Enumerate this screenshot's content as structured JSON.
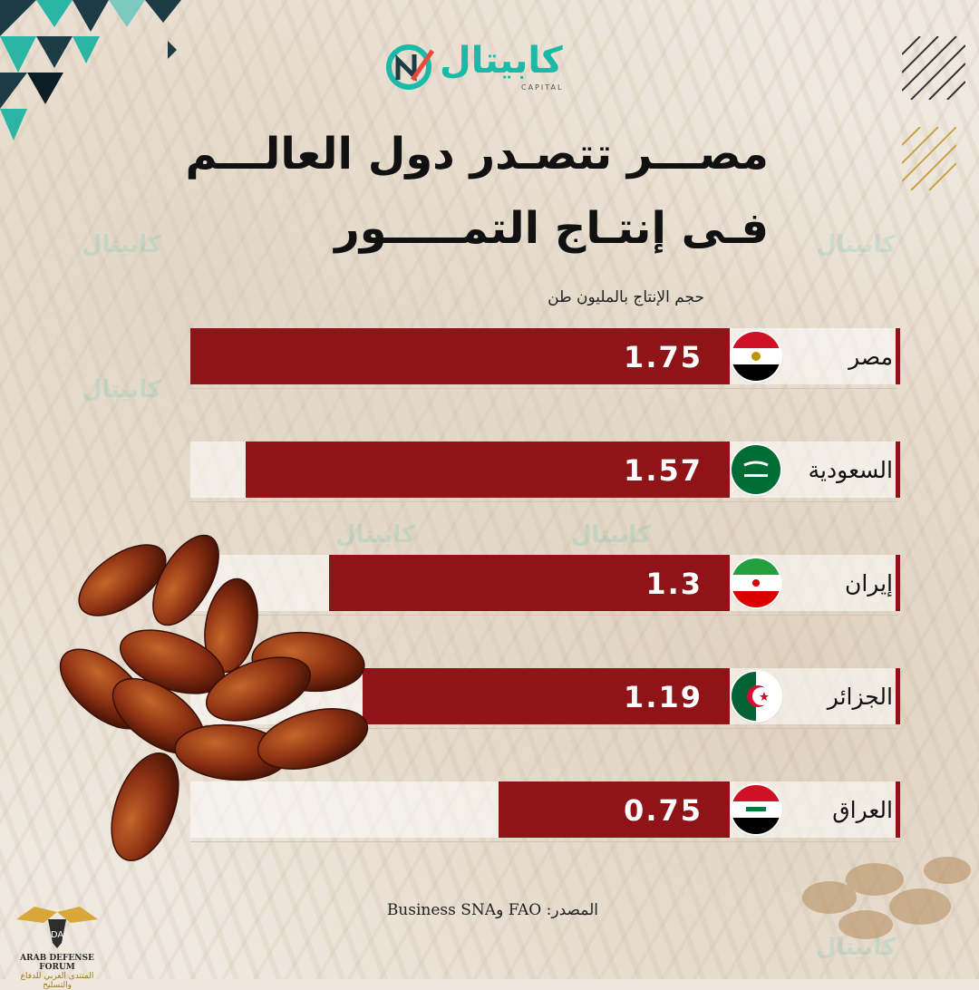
{
  "logo": {
    "text": "كابيتال",
    "sub": "CAPITAL"
  },
  "title_line1": "مصـــر تتصـدر دول العالـــم",
  "title_line2": "فـى إنتـاج التمـــــور",
  "source": "المصدر: FAO وBusiness SNA",
  "forum": {
    "line1": "ARAB DEFENSE FORUM",
    "line2": "المنتدى العربي للدفاع والتسليح"
  },
  "colors": {
    "bar": "#8e1418",
    "accent": "#1ab9a8"
  },
  "chart_data": {
    "type": "bar",
    "orientation": "horizontal",
    "ylabel": "حجم الإنتاج بالمليون طن",
    "categories": [
      "مصر",
      "السعودية",
      "إيران",
      "الجزائر",
      "العراق"
    ],
    "values": [
      1.75,
      1.57,
      1.3,
      1.19,
      0.75
    ],
    "value_labels": [
      "1.75",
      "1.57",
      "1.3",
      "1.19",
      "0.75"
    ],
    "flags": [
      "egypt-flag-icon",
      "saudi-flag-icon",
      "iran-flag-icon",
      "algeria-flag-icon",
      "iraq-flag-icon"
    ],
    "xlim": [
      0,
      1.75
    ],
    "grid": false,
    "legend": "none"
  }
}
